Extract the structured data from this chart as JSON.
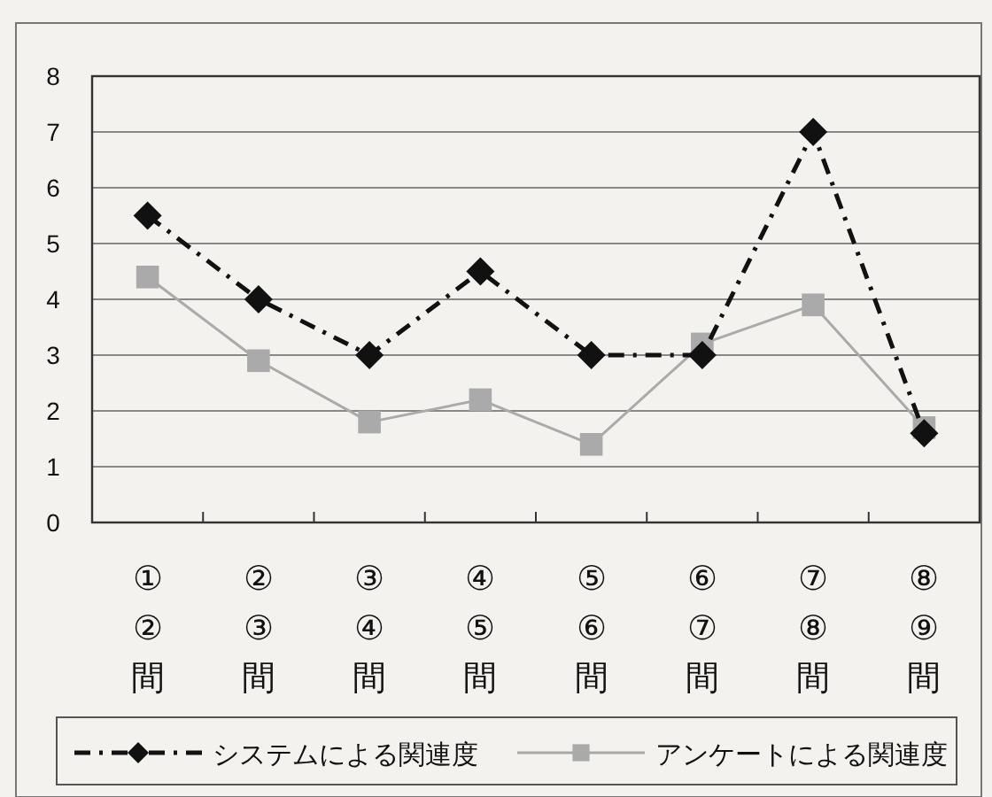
{
  "chart_data": {
    "type": "line",
    "categories": [
      "①\n②\n間",
      "②\n③\n間",
      "③\n④\n間",
      "④\n⑤\n間",
      "⑤\n⑥\n間",
      "⑥\n⑦\n間",
      "⑦\n⑧\n間",
      "⑧\n⑨\n間"
    ],
    "series": [
      {
        "name": "システムによる関連度",
        "color": "#111111",
        "marker": "diamond",
        "line_style": "dashdot",
        "values": [
          5.5,
          4.0,
          3.0,
          4.5,
          3.0,
          3.0,
          7.0,
          1.6
        ]
      },
      {
        "name": "アンケートによる関連度",
        "color": "#aaaaaa",
        "marker": "square",
        "line_style": "solid",
        "values": [
          4.4,
          2.9,
          1.8,
          2.2,
          1.4,
          3.2,
          3.9,
          1.7
        ]
      }
    ],
    "ylim": [
      0,
      8
    ],
    "yticks": [
      0,
      1,
      2,
      3,
      4,
      5,
      6,
      7,
      8
    ],
    "grid": "y",
    "legend": "bottom"
  }
}
